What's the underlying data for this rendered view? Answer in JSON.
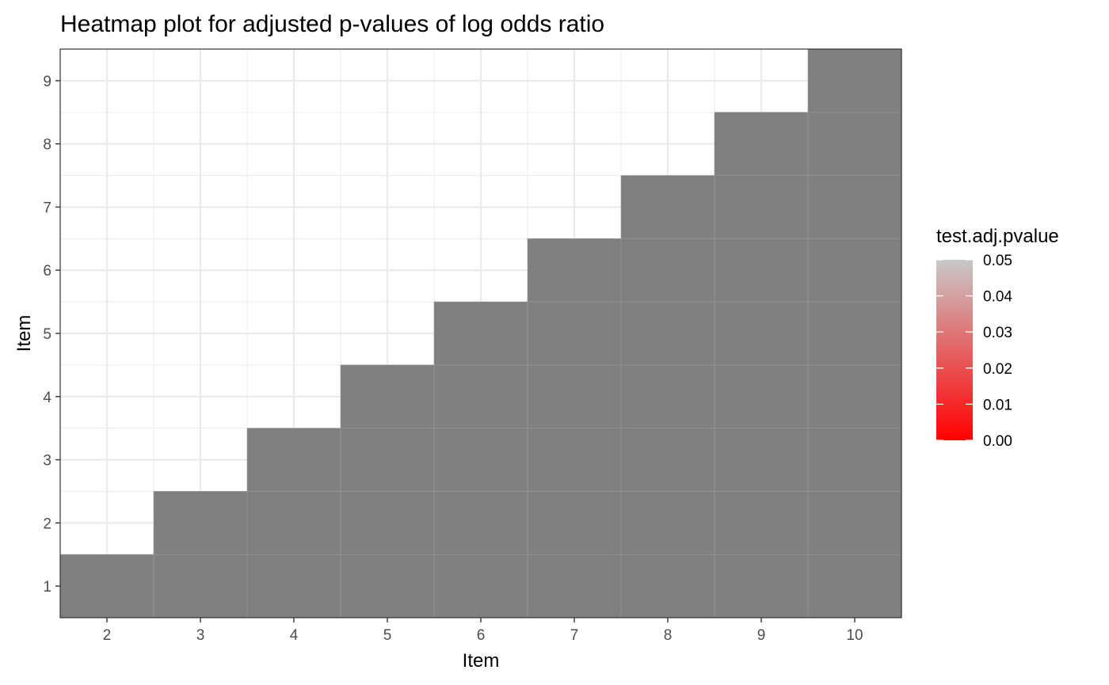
{
  "chart_data": {
    "type": "heatmap",
    "title": "Heatmap plot for adjusted p-values of log odds ratio",
    "xlabel": "Item",
    "ylabel": "Item",
    "x_categories": [
      2,
      3,
      4,
      5,
      6,
      7,
      8,
      9,
      10
    ],
    "y_categories": [
      1,
      2,
      3,
      4,
      5,
      6,
      7,
      8,
      9
    ],
    "xlim": [
      1.5,
      10.5
    ],
    "ylim": [
      0.5,
      9.5
    ],
    "grid": true,
    "cells_rule": "a cell is drawn for every pair with y < x",
    "cell_value": "NA",
    "cell_color": "#7f7f7f",
    "legend": {
      "title": "test.adj.pvalue",
      "position": "right",
      "min": 0.0,
      "max": 0.05,
      "low_color": "#ff0000",
      "high_color": "#c8c8c8",
      "ticks": [
        "0.00",
        "0.01",
        "0.02",
        "0.03",
        "0.04",
        "0.05"
      ]
    }
  },
  "colors": {
    "panel_border": "#333333",
    "grid_major": "#ebebeb",
    "tick_mark": "#333333",
    "cell_border": "#9a9a9a"
  }
}
